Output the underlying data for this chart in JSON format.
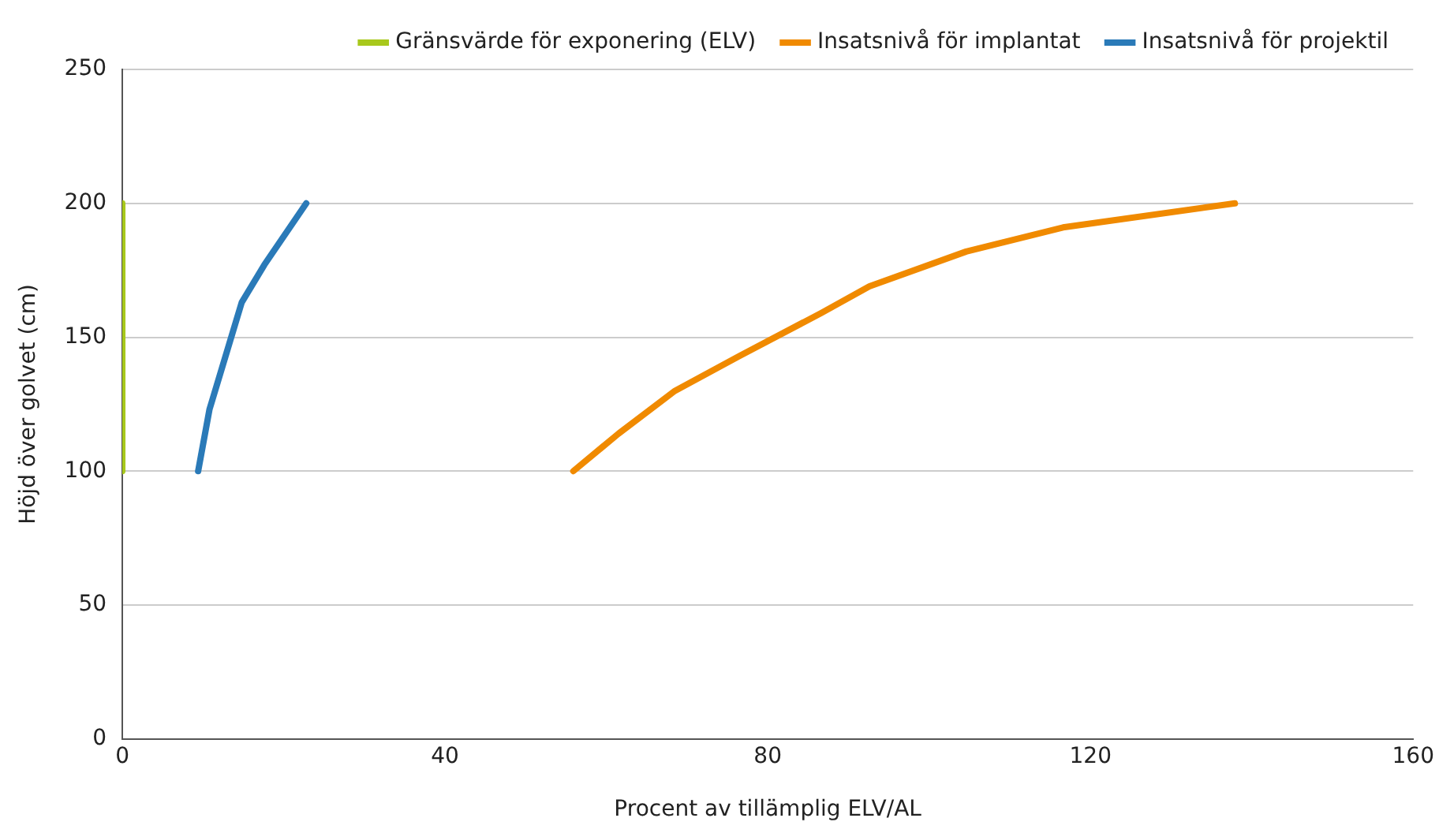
{
  "chart_data": {
    "type": "line",
    "xlabel": "Procent av tillämplig ELV/AL",
    "ylabel": "Höjd över golvet (cm)",
    "xlim": [
      0,
      160
    ],
    "xticks": [
      0,
      40,
      80,
      120,
      160
    ],
    "ylim": [
      0,
      250
    ],
    "yticks": [
      0,
      50,
      100,
      150,
      200,
      250
    ],
    "grid": "y",
    "legend": "top",
    "marker": "none",
    "line_style": "solid",
    "series": [
      {
        "name": "Gränsvärde för exponering (ELV)",
        "color": "#a8c81c",
        "x": [
          0,
          0
        ],
        "values": [
          100,
          200
        ]
      },
      {
        "name": "Insatsnivå för implantat",
        "color": "#f08a00",
        "x": [
          55.9,
          61.5,
          68.5,
          76.5,
          86.6,
          92.6,
          104.6,
          116.6,
          137.9
        ],
        "values": [
          100,
          114,
          130,
          143,
          159,
          169,
          182,
          191,
          200
        ]
      },
      {
        "name": "Insatsnivå för projektil",
        "color": "#2a7ab8",
        "x": [
          9.4,
          10.8,
          13.0,
          14.8,
          17.6,
          22.8
        ],
        "values": [
          100,
          123,
          145,
          163,
          177,
          200
        ]
      }
    ]
  }
}
